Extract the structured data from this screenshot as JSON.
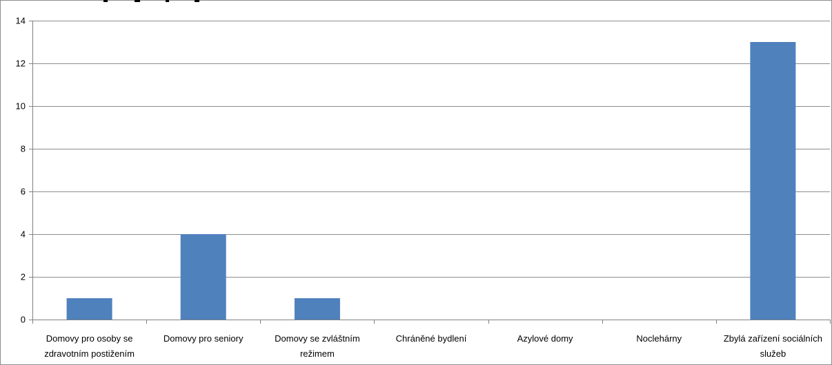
{
  "chart_data": {
    "type": "bar",
    "title": "",
    "xlabel": "",
    "ylabel": "",
    "categories": [
      [
        "Domovy pro osoby se",
        "zdravotním postižením"
      ],
      [
        "Domovy pro seniory"
      ],
      [
        "Domovy se zvláštním",
        "režimem"
      ],
      [
        "Chráněné bydlení"
      ],
      [
        "Azylové domy"
      ],
      [
        "Noclehárny"
      ],
      [
        "Zbylá zařízení sociálních",
        "služeb"
      ]
    ],
    "values": [
      1,
      4,
      1,
      0,
      0,
      0,
      13
    ],
    "ylim": [
      0,
      14
    ],
    "yticks": [
      0,
      2,
      4,
      6,
      8,
      10,
      12,
      14
    ],
    "grid": true,
    "legend": "none",
    "colors": {
      "bar": "#4F81BD",
      "grid": "#8C8C8C",
      "axis": "#808080",
      "border": "#8C8C8C"
    }
  }
}
